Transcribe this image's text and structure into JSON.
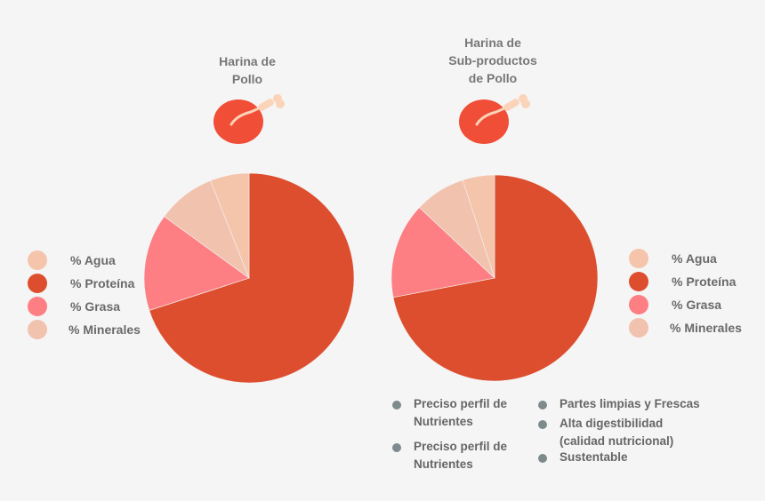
{
  "colors": {
    "agua": "#f4c4ab",
    "proteina": "#dd4e2e",
    "grasa": "#fd7f84",
    "minerales": "#f1c2ae",
    "chicken": "#f04e37",
    "bone": "#fbd3b8",
    "bullet": "#7d8b8c"
  },
  "left_chart": {
    "title_lines": [
      "Harina de",
      "Pollo"
    ],
    "icon": "chicken-leg-icon",
    "legend": [
      "% Agua",
      "% Proteína",
      "% Grasa",
      "% Minerales"
    ]
  },
  "right_chart": {
    "title_lines": [
      "Harina de",
      "Sub-productos",
      "de Pollo"
    ],
    "icon": "chicken-leg-icon",
    "legend": [
      "% Agua",
      "% Proteína",
      "% Grasa",
      "% Minerales"
    ]
  },
  "features": {
    "left_column": [
      [
        "Preciso perfil de",
        "Nutrientes"
      ],
      [
        "Preciso perfil de",
        "Nutrientes"
      ]
    ],
    "right_column": [
      [
        "Partes limpias y Frescas"
      ],
      [
        "Alta digestibilidad",
        "(calidad nutricional)"
      ],
      [
        "Sustentable"
      ]
    ]
  },
  "chart_data": [
    {
      "type": "pie",
      "title": "Harina de Pollo",
      "categories": [
        "% Proteína",
        "% Grasa",
        "% Minerales",
        "% Agua"
      ],
      "values": [
        70,
        15,
        9,
        6
      ],
      "color_keys": [
        "proteina",
        "grasa",
        "minerales",
        "agua"
      ]
    },
    {
      "type": "pie",
      "title": "Harina de Sub-productos de Pollo",
      "categories": [
        "% Proteína",
        "% Grasa",
        "% Minerales",
        "% Agua"
      ],
      "values": [
        72,
        15,
        8,
        5
      ],
      "color_keys": [
        "proteina",
        "grasa",
        "minerales",
        "agua"
      ]
    }
  ]
}
